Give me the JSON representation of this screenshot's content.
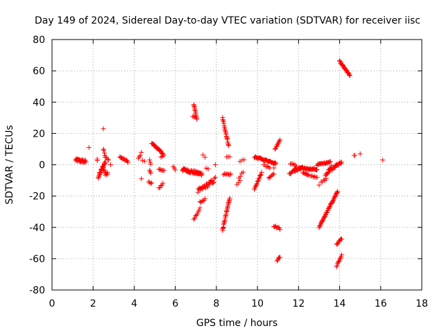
{
  "chart_data": {
    "type": "scatter",
    "title": "Day 149 of 2024, Sidereal Day-to-day VTEC variation (SDTVAR) for receiver iisc",
    "xlabel": "GPS time / hours",
    "ylabel": "SDTVAR / TECUs",
    "xlim": [
      0,
      18
    ],
    "ylim": [
      -80,
      80
    ],
    "xticks": [
      0,
      2,
      4,
      6,
      8,
      10,
      12,
      14,
      16,
      18
    ],
    "yticks": [
      -80,
      -60,
      -40,
      -20,
      0,
      20,
      40,
      60,
      80
    ],
    "xtick_labels": [
      "0",
      "2",
      "4",
      "6",
      "8",
      "10",
      "12",
      "14",
      "16",
      "18"
    ],
    "ytick_labels": [
      "-80",
      "-60",
      "-40",
      "-20",
      "0",
      "20",
      "40",
      "60",
      "80"
    ],
    "grid": true,
    "marker": "+",
    "color": "#ff0000",
    "segments": [
      {
        "x0": 1.15,
        "x1": 1.65,
        "y0": 3,
        "y1": 2,
        "n": 30,
        "jitter": 2
      },
      {
        "x0": 1.8,
        "x1": 1.8,
        "y0": 11,
        "y1": 11,
        "n": 1,
        "jitter": 0
      },
      {
        "x0": 2.2,
        "x1": 2.2,
        "y0": 3,
        "y1": 4,
        "n": 2,
        "jitter": 1
      },
      {
        "x0": 2.25,
        "x1": 2.6,
        "y0": -8,
        "y1": 2,
        "n": 22,
        "jitter": 3
      },
      {
        "x0": 2.5,
        "x1": 2.5,
        "y0": 23,
        "y1": 23,
        "n": 1,
        "jitter": 0
      },
      {
        "x0": 2.5,
        "x1": 2.6,
        "y0": 10,
        "y1": 5,
        "n": 5,
        "jitter": 1
      },
      {
        "x0": 2.5,
        "x1": 2.7,
        "y0": -3,
        "y1": -6,
        "n": 6,
        "jitter": 2
      },
      {
        "x0": 2.6,
        "x1": 2.75,
        "y0": 5,
        "y1": 3,
        "n": 4,
        "jitter": 1
      },
      {
        "x0": 2.6,
        "x1": 2.7,
        "y0": -7,
        "y1": -5,
        "n": 3,
        "jitter": 1
      },
      {
        "x0": 2.85,
        "x1": 2.85,
        "y0": 0,
        "y1": 0,
        "n": 1,
        "jitter": 0
      },
      {
        "x0": 3.3,
        "x1": 3.7,
        "y0": 5,
        "y1": 2,
        "n": 12,
        "jitter": 1
      },
      {
        "x0": 4.2,
        "x1": 4.3,
        "y0": 4,
        "y1": 6,
        "n": 3,
        "jitter": 1
      },
      {
        "x0": 4.35,
        "x1": 4.35,
        "y0": 8,
        "y1": 8,
        "n": 1,
        "jitter": 0
      },
      {
        "x0": 4.35,
        "x1": 4.35,
        "y0": -9,
        "y1": -9,
        "n": 1,
        "jitter": 0
      },
      {
        "x0": 4.4,
        "x1": 4.5,
        "y0": 3,
        "y1": 2,
        "n": 2,
        "jitter": 1
      },
      {
        "x0": 4.75,
        "x1": 4.8,
        "y0": -4,
        "y1": -5,
        "n": 3,
        "jitter": 1
      },
      {
        "x0": 4.75,
        "x1": 4.8,
        "y0": 3,
        "y1": 0,
        "n": 3,
        "jitter": 1
      },
      {
        "x0": 4.7,
        "x1": 4.85,
        "y0": -11,
        "y1": -12,
        "n": 4,
        "jitter": 1
      },
      {
        "x0": 4.85,
        "x1": 5.4,
        "y0": 14,
        "y1": 7,
        "n": 22,
        "jitter": 1
      },
      {
        "x0": 5.2,
        "x1": 5.45,
        "y0": -3,
        "y1": -4,
        "n": 6,
        "jitter": 1
      },
      {
        "x0": 5.2,
        "x1": 5.4,
        "y0": -15,
        "y1": -12,
        "n": 5,
        "jitter": 1
      },
      {
        "x0": 5.3,
        "x1": 5.45,
        "y0": 5,
        "y1": 6,
        "n": 3,
        "jitter": 1
      },
      {
        "x0": 5.9,
        "x1": 6.0,
        "y0": -1,
        "y1": -3,
        "n": 3,
        "jitter": 1
      },
      {
        "x0": 6.35,
        "x1": 7.3,
        "y0": -3,
        "y1": -6,
        "n": 50,
        "jitter": 2
      },
      {
        "x0": 6.9,
        "x1": 7.05,
        "y0": 39,
        "y1": 29,
        "n": 12,
        "jitter": 1
      },
      {
        "x0": 6.85,
        "x1": 6.95,
        "y0": 31,
        "y1": 30,
        "n": 3,
        "jitter": 1
      },
      {
        "x0": 6.9,
        "x1": 7.2,
        "y0": -35,
        "y1": -28,
        "n": 8,
        "jitter": 1
      },
      {
        "x0": 7.2,
        "x1": 7.45,
        "y0": -24,
        "y1": -22,
        "n": 6,
        "jitter": 1
      },
      {
        "x0": 7.1,
        "x1": 7.9,
        "y0": -17,
        "y1": -10,
        "n": 28,
        "jitter": 3
      },
      {
        "x0": 7.35,
        "x1": 7.45,
        "y0": 6,
        "y1": 5,
        "n": 2,
        "jitter": 1
      },
      {
        "x0": 7.5,
        "x1": 7.6,
        "y0": -2,
        "y1": -3,
        "n": 2,
        "jitter": 1
      },
      {
        "x0": 7.95,
        "x1": 7.95,
        "y0": 0,
        "y1": 0,
        "n": 1,
        "jitter": 0
      },
      {
        "x0": 7.95,
        "x1": 7.95,
        "y0": -8,
        "y1": -8,
        "n": 1,
        "jitter": 0
      },
      {
        "x0": 8.3,
        "x1": 8.6,
        "y0": 30,
        "y1": 12,
        "n": 20,
        "jitter": 1
      },
      {
        "x0": 8.5,
        "x1": 8.65,
        "y0": 5,
        "y1": 5,
        "n": 3,
        "jitter": 1
      },
      {
        "x0": 8.35,
        "x1": 8.7,
        "y0": -6,
        "y1": -6,
        "n": 8,
        "jitter": 1
      },
      {
        "x0": 8.3,
        "x1": 8.65,
        "y0": -42,
        "y1": -21,
        "n": 25,
        "jitter": 1
      },
      {
        "x0": 9.0,
        "x1": 9.15,
        "y0": -13,
        "y1": -10,
        "n": 3,
        "jitter": 1
      },
      {
        "x0": 9.1,
        "x1": 9.3,
        "y0": -8,
        "y1": -5,
        "n": 4,
        "jitter": 1
      },
      {
        "x0": 9.15,
        "x1": 9.35,
        "y0": 2,
        "y1": 3,
        "n": 3,
        "jitter": 1
      },
      {
        "x0": 9.85,
        "x1": 10.2,
        "y0": -16,
        "y1": -5,
        "n": 14,
        "jitter": 1
      },
      {
        "x0": 9.85,
        "x1": 10.9,
        "y0": 5,
        "y1": 1,
        "n": 36,
        "jitter": 1
      },
      {
        "x0": 10.3,
        "x1": 10.6,
        "y0": 0,
        "y1": -2,
        "n": 6,
        "jitter": 1
      },
      {
        "x0": 10.55,
        "x1": 10.8,
        "y0": -8,
        "y1": -6,
        "n": 6,
        "jitter": 1
      },
      {
        "x0": 10.8,
        "x1": 10.8,
        "y0": -2,
        "y1": -2,
        "n": 1,
        "jitter": 0
      },
      {
        "x0": 10.85,
        "x1": 11.1,
        "y0": 10,
        "y1": 16,
        "n": 9,
        "jitter": 1
      },
      {
        "x0": 10.8,
        "x1": 11.1,
        "y0": -39,
        "y1": -41,
        "n": 8,
        "jitter": 1
      },
      {
        "x0": 10.95,
        "x1": 11.1,
        "y0": -61,
        "y1": -59,
        "n": 5,
        "jitter": 1
      },
      {
        "x0": 11.55,
        "x1": 11.9,
        "y0": -6,
        "y1": -2,
        "n": 10,
        "jitter": 1
      },
      {
        "x0": 11.6,
        "x1": 11.9,
        "y0": 1,
        "y1": -1,
        "n": 6,
        "jitter": 1
      },
      {
        "x0": 11.8,
        "x1": 12.2,
        "y0": -4,
        "y1": -2,
        "n": 10,
        "jitter": 1
      },
      {
        "x0": 12.0,
        "x1": 12.9,
        "y0": -2,
        "y1": -3,
        "n": 30,
        "jitter": 1
      },
      {
        "x0": 12.2,
        "x1": 12.5,
        "y0": -5,
        "y1": -7,
        "n": 8,
        "jitter": 1
      },
      {
        "x0": 12.6,
        "x1": 12.9,
        "y0": -7,
        "y1": -8,
        "n": 6,
        "jitter": 1
      },
      {
        "x0": 12.9,
        "x1": 13.55,
        "y0": 0,
        "y1": 2,
        "n": 18,
        "jitter": 1
      },
      {
        "x0": 13.0,
        "x1": 13.0,
        "y0": -13,
        "y1": -13,
        "n": 1,
        "jitter": 0
      },
      {
        "x0": 13.1,
        "x1": 13.35,
        "y0": -11,
        "y1": -9,
        "n": 5,
        "jitter": 1
      },
      {
        "x0": 13.3,
        "x1": 14.1,
        "y0": -6,
        "y1": 2,
        "n": 26,
        "jitter": 2
      },
      {
        "x0": 13.0,
        "x1": 13.9,
        "y0": -40,
        "y1": -17,
        "n": 45,
        "jitter": 1
      },
      {
        "x0": 13.45,
        "x1": 13.6,
        "y0": -3,
        "y1": -1,
        "n": 3,
        "jitter": 1
      },
      {
        "x0": 13.85,
        "x1": 14.1,
        "y0": -51,
        "y1": -47,
        "n": 8,
        "jitter": 1
      },
      {
        "x0": 13.85,
        "x1": 14.1,
        "y0": -65,
        "y1": -58,
        "n": 10,
        "jitter": 1
      },
      {
        "x0": 14.0,
        "x1": 14.5,
        "y0": 66,
        "y1": 57,
        "n": 22,
        "jitter": 1
      },
      {
        "x0": 14.7,
        "x1": 14.75,
        "y0": 6,
        "y1": 6,
        "n": 2,
        "jitter": 0
      },
      {
        "x0": 15.0,
        "x1": 15.0,
        "y0": 7,
        "y1": 7,
        "n": 1,
        "jitter": 0
      },
      {
        "x0": 16.1,
        "x1": 16.1,
        "y0": 3,
        "y1": 3,
        "n": 1,
        "jitter": 0
      }
    ]
  }
}
